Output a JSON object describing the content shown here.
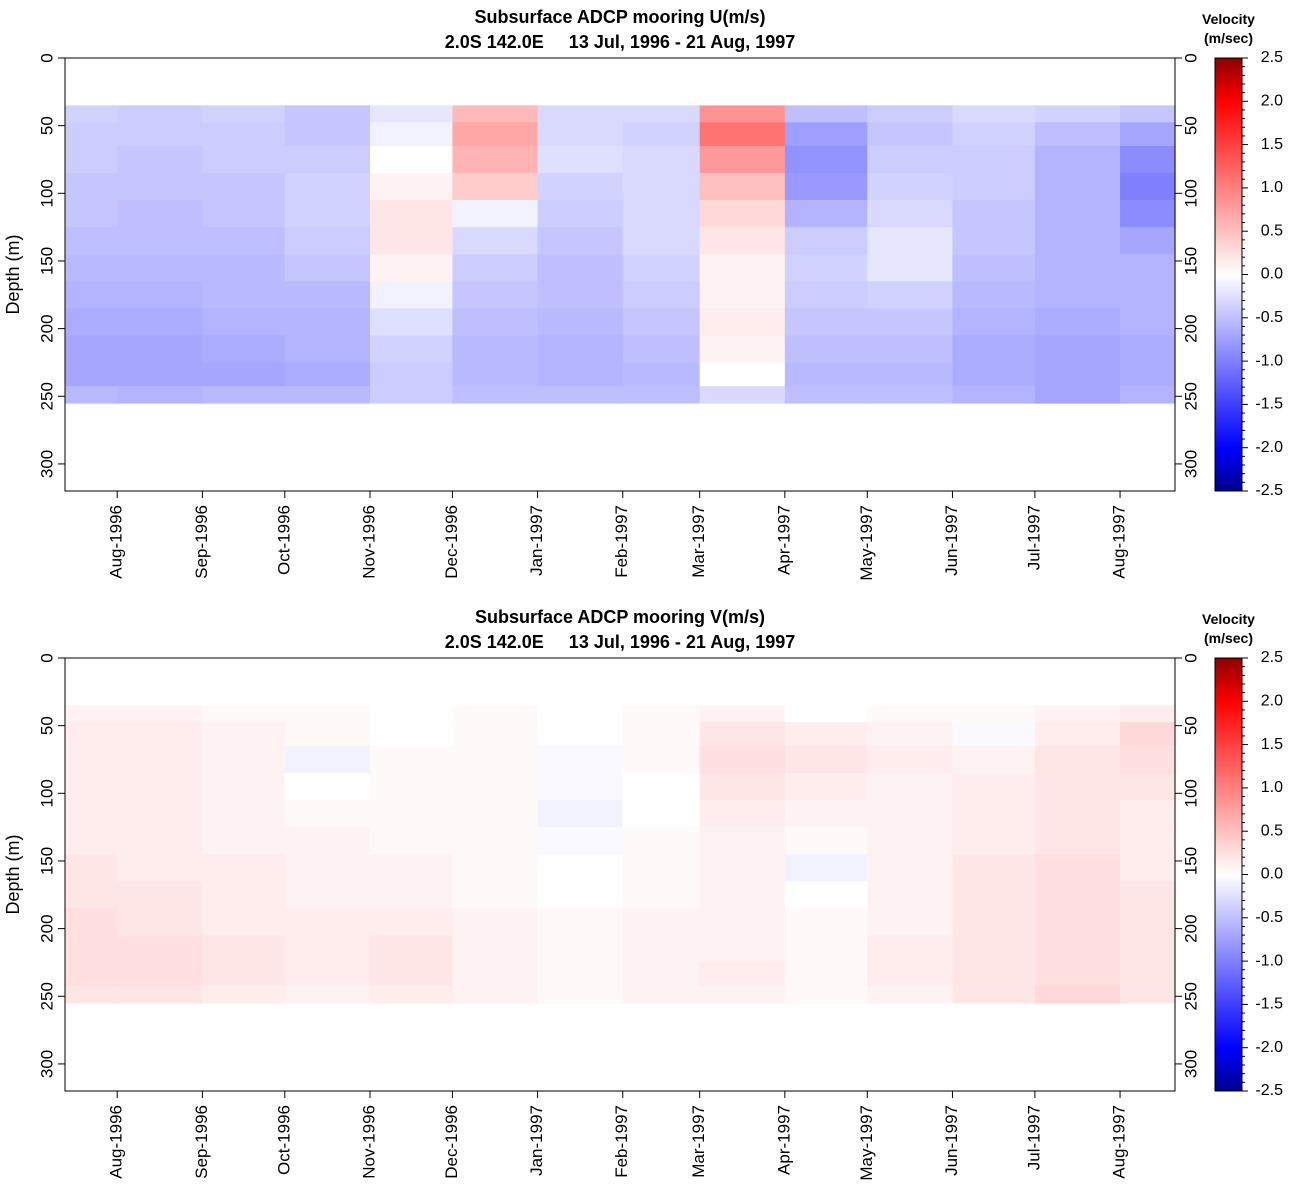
{
  "chart_data": [
    {
      "type": "heatmap",
      "title": "Subsurface ADCP mooring U(m/s)",
      "subtitle": "2.0S 142.0E     13 Jul, 1996 - 21 Aug, 1997",
      "ylabel": "Depth (m)",
      "ylim": [
        0,
        320
      ],
      "y_reversed": true,
      "yticks": [
        "0",
        "50",
        "100",
        "150",
        "200",
        "250",
        "300"
      ],
      "xlim": [
        "1996-07-13",
        "1997-08-21"
      ],
      "xticks": [
        "Aug-1996",
        "Sep-1996",
        "Oct-1996",
        "Nov-1996",
        "Dec-1996",
        "Jan-1997",
        "Feb-1997",
        "Mar-1997",
        "Apr-1997",
        "May-1997",
        "Jun-1997",
        "Jul-1997",
        "Aug-1997"
      ],
      "colorbar": {
        "title_line1": "Velocity",
        "title_line2": "(m/sec)",
        "range": [
          -2.5,
          2.5
        ],
        "ticks": [
          "2.5",
          "2.0",
          "1.5",
          "1.0",
          "0.5",
          "0.0",
          "-0.5",
          "-1.0",
          "-1.5",
          "-2.0",
          "-2.5"
        ]
      },
      "data_depths_m": [
        40,
        55,
        75,
        95,
        115,
        135,
        155,
        175,
        195,
        215,
        235,
        250
      ],
      "data_months": [
        "1996-07",
        "1996-08",
        "1996-09",
        "1996-10",
        "1996-11",
        "1996-12",
        "1997-01",
        "1997-02",
        "1997-03",
        "1997-04",
        "1997-05",
        "1997-06",
        "1997-07",
        "1997-08"
      ],
      "values": [
        [
          -0.35,
          -0.4,
          -0.35,
          -0.45,
          -0.2,
          0.55,
          -0.3,
          -0.3,
          0.85,
          -0.5,
          -0.4,
          -0.3,
          -0.35,
          -0.45
        ],
        [
          -0.4,
          -0.4,
          -0.4,
          -0.45,
          -0.1,
          0.7,
          -0.3,
          -0.35,
          1.1,
          -0.75,
          -0.45,
          -0.35,
          -0.5,
          -0.7
        ],
        [
          -0.4,
          -0.45,
          -0.4,
          -0.4,
          0.0,
          0.6,
          -0.25,
          -0.3,
          0.8,
          -0.85,
          -0.4,
          -0.4,
          -0.6,
          -0.9
        ],
        [
          -0.45,
          -0.45,
          -0.45,
          -0.35,
          0.1,
          0.4,
          -0.35,
          -0.3,
          0.5,
          -0.8,
          -0.35,
          -0.4,
          -0.6,
          -1.0
        ],
        [
          -0.45,
          -0.5,
          -0.45,
          -0.35,
          0.2,
          -0.1,
          -0.4,
          -0.3,
          0.3,
          -0.6,
          -0.3,
          -0.45,
          -0.6,
          -0.9
        ],
        [
          -0.5,
          -0.5,
          -0.5,
          -0.4,
          0.2,
          -0.3,
          -0.45,
          -0.3,
          0.2,
          -0.4,
          -0.2,
          -0.45,
          -0.6,
          -0.7
        ],
        [
          -0.55,
          -0.55,
          -0.55,
          -0.45,
          0.1,
          -0.4,
          -0.5,
          -0.35,
          0.1,
          -0.35,
          -0.2,
          -0.5,
          -0.6,
          -0.6
        ],
        [
          -0.6,
          -0.6,
          -0.55,
          -0.55,
          -0.1,
          -0.45,
          -0.5,
          -0.4,
          0.1,
          -0.4,
          -0.35,
          -0.55,
          -0.6,
          -0.6
        ],
        [
          -0.65,
          -0.65,
          -0.6,
          -0.6,
          -0.25,
          -0.5,
          -0.55,
          -0.45,
          0.15,
          -0.45,
          -0.45,
          -0.6,
          -0.65,
          -0.6
        ],
        [
          -0.7,
          -0.7,
          -0.65,
          -0.6,
          -0.35,
          -0.55,
          -0.6,
          -0.5,
          0.1,
          -0.5,
          -0.5,
          -0.65,
          -0.7,
          -0.65
        ],
        [
          -0.7,
          -0.7,
          -0.7,
          -0.65,
          -0.4,
          -0.55,
          -0.6,
          -0.55,
          0.0,
          -0.55,
          -0.55,
          -0.65,
          -0.7,
          -0.65
        ],
        [
          -0.55,
          -0.6,
          -0.55,
          -0.55,
          -0.4,
          -0.5,
          -0.5,
          -0.5,
          -0.3,
          -0.5,
          -0.5,
          -0.6,
          -0.7,
          -0.6
        ]
      ]
    },
    {
      "type": "heatmap",
      "title": "Subsurface ADCP mooring V(m/s)",
      "subtitle": "2.0S 142.0E     13 Jul, 1996 - 21 Aug, 1997",
      "ylabel": "Depth (m)",
      "ylim": [
        0,
        320
      ],
      "y_reversed": true,
      "yticks": [
        "0",
        "50",
        "100",
        "150",
        "200",
        "250",
        "300"
      ],
      "xlim": [
        "1996-07-13",
        "1997-08-21"
      ],
      "xticks": [
        "Aug-1996",
        "Sep-1996",
        "Oct-1996",
        "Nov-1996",
        "Dec-1996",
        "Jan-1997",
        "Feb-1997",
        "Mar-1997",
        "Apr-1997",
        "May-1997",
        "Jun-1997",
        "Jul-1997",
        "Aug-1997"
      ],
      "colorbar": {
        "title_line1": "Velocity",
        "title_line2": "(m/sec)",
        "range": [
          -2.5,
          2.5
        ],
        "ticks": [
          "2.5",
          "2.0",
          "1.5",
          "1.0",
          "0.5",
          "0.0",
          "-0.5",
          "-1.0",
          "-1.5",
          "-2.0",
          "-2.5"
        ]
      },
      "data_depths_m": [
        40,
        55,
        75,
        95,
        115,
        135,
        155,
        175,
        195,
        215,
        235,
        250
      ],
      "data_months": [
        "1996-07",
        "1996-08",
        "1996-09",
        "1996-10",
        "1996-11",
        "1996-12",
        "1997-01",
        "1997-02",
        "1997-03",
        "1997-04",
        "1997-05",
        "1997-06",
        "1997-07",
        "1997-08"
      ],
      "values": [
        [
          0.1,
          0.1,
          0.05,
          0.05,
          0.0,
          0.05,
          0.0,
          0.05,
          0.1,
          0.0,
          0.05,
          0.05,
          0.1,
          0.15
        ],
        [
          0.15,
          0.15,
          0.1,
          0.05,
          0.0,
          0.05,
          0.0,
          0.05,
          0.2,
          0.15,
          0.1,
          -0.05,
          0.15,
          0.3
        ],
        [
          0.15,
          0.15,
          0.1,
          -0.1,
          0.05,
          0.05,
          -0.05,
          0.05,
          0.25,
          0.2,
          0.15,
          0.1,
          0.2,
          0.25
        ],
        [
          0.15,
          0.15,
          0.1,
          0.0,
          0.05,
          0.05,
          -0.05,
          0.0,
          0.2,
          0.15,
          0.1,
          0.15,
          0.2,
          0.2
        ],
        [
          0.15,
          0.15,
          0.1,
          0.05,
          0.05,
          0.05,
          -0.1,
          0.0,
          0.15,
          0.1,
          0.1,
          0.15,
          0.2,
          0.15
        ],
        [
          0.15,
          0.15,
          0.1,
          0.1,
          0.05,
          0.05,
          -0.05,
          0.05,
          0.1,
          0.05,
          0.1,
          0.15,
          0.2,
          0.15
        ],
        [
          0.2,
          0.15,
          0.15,
          0.1,
          0.1,
          0.05,
          0.0,
          0.05,
          0.1,
          -0.1,
          0.1,
          0.2,
          0.25,
          0.15
        ],
        [
          0.2,
          0.2,
          0.15,
          0.1,
          0.1,
          0.05,
          0.0,
          0.05,
          0.1,
          0.0,
          0.1,
          0.2,
          0.25,
          0.2
        ],
        [
          0.25,
          0.2,
          0.15,
          0.15,
          0.15,
          0.1,
          0.05,
          0.1,
          0.1,
          0.05,
          0.1,
          0.2,
          0.25,
          0.2
        ],
        [
          0.25,
          0.25,
          0.2,
          0.15,
          0.2,
          0.1,
          0.05,
          0.1,
          0.1,
          0.05,
          0.15,
          0.2,
          0.25,
          0.2
        ],
        [
          0.25,
          0.25,
          0.2,
          0.15,
          0.2,
          0.1,
          0.05,
          0.1,
          0.15,
          0.05,
          0.15,
          0.2,
          0.25,
          0.2
        ],
        [
          0.2,
          0.2,
          0.15,
          0.1,
          0.15,
          0.1,
          0.05,
          0.1,
          0.1,
          0.05,
          0.1,
          0.2,
          0.3,
          0.2
        ]
      ]
    }
  ]
}
